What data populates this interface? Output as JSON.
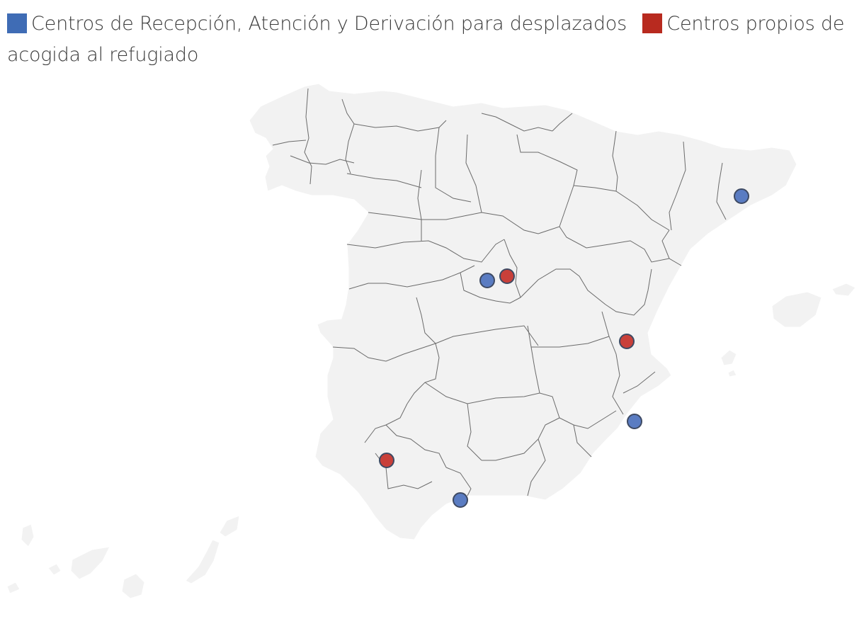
{
  "legend": {
    "items": [
      {
        "label": "Centros de Recepción, Atención y Derivación para desplazados",
        "color": "#3f6cb5"
      },
      {
        "label": "Centros propios de acogida al refugiado",
        "color": "#b82a1f"
      }
    ]
  },
  "map": {
    "region": "España",
    "markers": [
      {
        "category": "Centros de Recepción, Atención y Derivación para desplazados",
        "color": "#5a7cc2"
      },
      {
        "category": "Centros de Recepción, Atención y Derivación para desplazados",
        "color": "#5a7cc2"
      },
      {
        "category": "Centros de Recepción, Atención y Derivación para desplazados",
        "color": "#5a7cc2"
      },
      {
        "category": "Centros de Recepción, Atención y Derivación para desplazados",
        "color": "#5a7cc2"
      },
      {
        "category": "Centros propios de acogida al refugiado",
        "color": "#c9403a"
      },
      {
        "category": "Centros propios de acogida al refugiado",
        "color": "#c9403a"
      },
      {
        "category": "Centros propios de acogida al refugiado",
        "color": "#c9403a"
      }
    ]
  }
}
